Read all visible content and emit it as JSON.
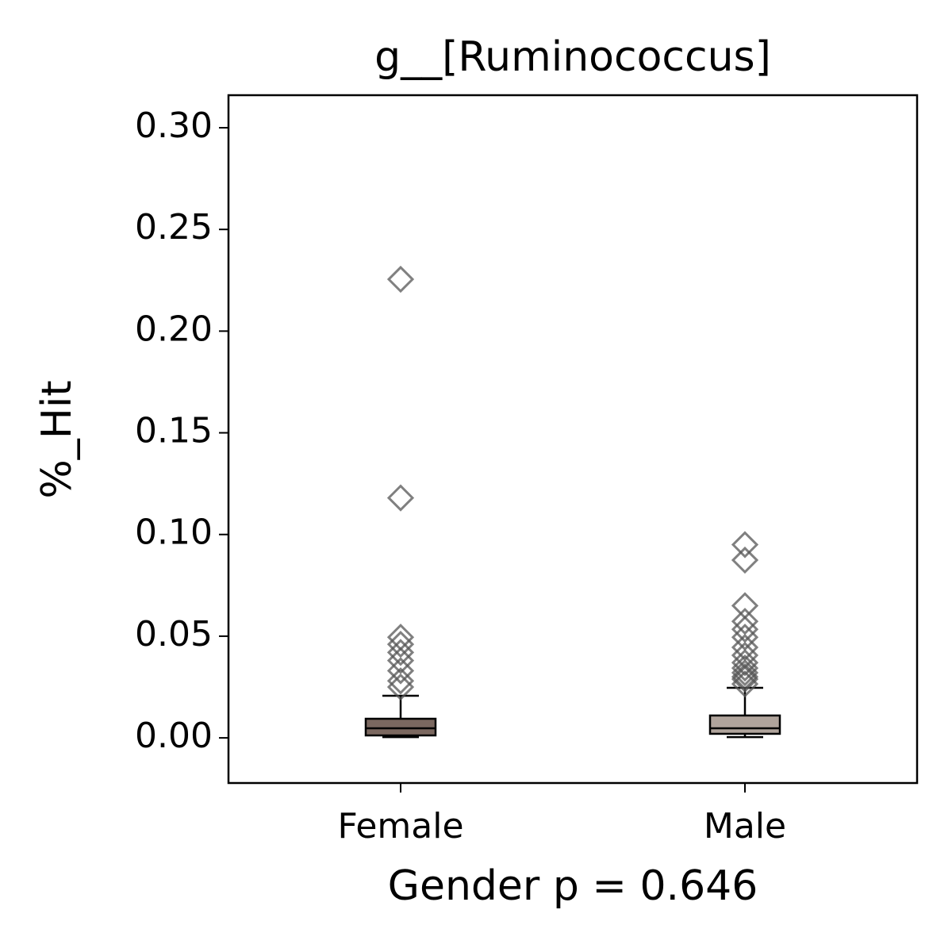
{
  "chart_data": {
    "type": "box",
    "title": "g__[Ruminococcus]",
    "x_label": "Gender p = 0.646",
    "y_label": "%_Hit",
    "categories": [
      "Female",
      "Male"
    ],
    "boxes": [
      {
        "min": 0.0004,
        "q1": 0.0012,
        "median": 0.0047,
        "q3": 0.0094,
        "max": 0.0207,
        "color": "#7b6860",
        "outliers": [
          0.2255,
          0.118,
          0.0495,
          0.046,
          0.042,
          0.038,
          0.033,
          0.028,
          0.025
        ]
      },
      {
        "min": 0.0004,
        "q1": 0.002,
        "median": 0.0047,
        "q3": 0.011,
        "max": 0.0246,
        "color": "#b0a49c",
        "outliers": [
          0.095,
          0.0874,
          0.065,
          0.0573,
          0.0534,
          0.0495,
          0.0445,
          0.0406,
          0.037,
          0.0343,
          0.032,
          0.03,
          0.0289,
          0.0265
        ]
      }
    ],
    "outlier_color": "#555555",
    "ylim": [
      -0.0222,
      0.316
    ],
    "yticks": [
      {
        "value": 0,
        "label": "0.00"
      },
      {
        "value": 0.05,
        "label": "0.05"
      },
      {
        "value": 0.1,
        "label": "0.10"
      },
      {
        "value": 0.15,
        "label": "0.15"
      },
      {
        "value": 0.2,
        "label": "0.20"
      },
      {
        "value": 0.25,
        "label": "0.25"
      },
      {
        "value": 0.3,
        "label": "0.30"
      }
    ]
  }
}
